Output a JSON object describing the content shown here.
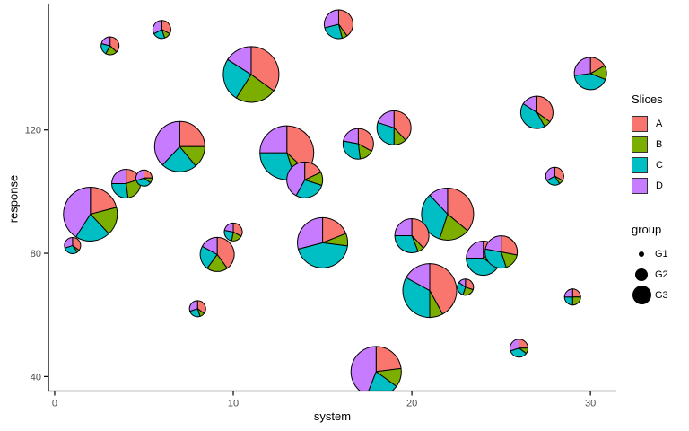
{
  "figure": {
    "background": "#FFFFFF",
    "axis_color": "#000000",
    "tick_label_color": "#4D4D4D"
  },
  "chart_data": {
    "type": "scatterpie",
    "title": "",
    "xlabel": "system",
    "ylabel": "response",
    "x_ticks": [
      0,
      10,
      20,
      30
    ],
    "y_ticks": [
      40,
      80,
      120
    ],
    "xlim": [
      -0.35,
      31.45
    ],
    "ylim": [
      35.3,
      160.7
    ],
    "grid": "off",
    "slice_legend": {
      "title": "Slices",
      "entries": [
        {
          "label": "A",
          "color": "#F8766D"
        },
        {
          "label": "B",
          "color": "#7CAE00"
        },
        {
          "label": "C",
          "color": "#00BFC4"
        },
        {
          "label": "D",
          "color": "#C77CFF"
        }
      ]
    },
    "size_legend": {
      "title": "group",
      "entries": [
        {
          "label": "G1",
          "dot_radius": 3
        },
        {
          "label": "G2",
          "dot_radius": 7
        },
        {
          "label": "G3",
          "dot_radius": 10.5
        }
      ]
    },
    "points": [
      {
        "x": 3.1,
        "y": 147.3,
        "r": 10,
        "group": "G1",
        "fractions": [
          0.37,
          0.21,
          0.21,
          0.21
        ]
      },
      {
        "x": 6.0,
        "y": 152.6,
        "r": 10,
        "group": "G1",
        "fractions": [
          0.33,
          0.12,
          0.22,
          0.33
        ]
      },
      {
        "x": 15.9,
        "y": 154.3,
        "r": 16,
        "group": "G2",
        "fractions": [
          0.4,
          0.06,
          0.25,
          0.29
        ]
      },
      {
        "x": 11.0,
        "y": 138.0,
        "r": 31,
        "group": "G3",
        "fractions": [
          0.35,
          0.24,
          0.25,
          0.16
        ]
      },
      {
        "x": 30.0,
        "y": 138.3,
        "r": 18,
        "group": "G2",
        "fractions": [
          0.17,
          0.14,
          0.42,
          0.27
        ]
      },
      {
        "x": 27.0,
        "y": 125.7,
        "r": 18,
        "group": "G2",
        "fractions": [
          0.35,
          0.07,
          0.42,
          0.16
        ]
      },
      {
        "x": 19.0,
        "y": 120.7,
        "r": 19,
        "group": "G2",
        "fractions": [
          0.38,
          0.12,
          0.3,
          0.2
        ]
      },
      {
        "x": 17.0,
        "y": 115.5,
        "r": 17,
        "group": "G2",
        "fractions": [
          0.33,
          0.15,
          0.3,
          0.22
        ]
      },
      {
        "x": 7.0,
        "y": 114.6,
        "r": 28,
        "group": "G3",
        "fractions": [
          0.25,
          0.14,
          0.23,
          0.38
        ]
      },
      {
        "x": 13.0,
        "y": 112.6,
        "r": 30,
        "group": "G3",
        "fractions": [
          0.37,
          0.08,
          0.3,
          0.25
        ]
      },
      {
        "x": 4.0,
        "y": 102.6,
        "r": 16,
        "group": "G2",
        "fractions": [
          0.2,
          0.28,
          0.27,
          0.25
        ]
      },
      {
        "x": 5.0,
        "y": 104.4,
        "r": 9,
        "group": "G1",
        "fractions": [
          0.25,
          0.1,
          0.35,
          0.3
        ]
      },
      {
        "x": 14.0,
        "y": 103.8,
        "r": 20,
        "group": "G2",
        "fractions": [
          0.18,
          0.12,
          0.28,
          0.42
        ]
      },
      {
        "x": 2.0,
        "y": 92.7,
        "r": 30,
        "group": "G3",
        "fractions": [
          0.21,
          0.17,
          0.21,
          0.41
        ]
      },
      {
        "x": 1.0,
        "y": 82.5,
        "r": 9,
        "group": "G1",
        "fractions": [
          0.35,
          0.05,
          0.3,
          0.3
        ]
      },
      {
        "x": 9.1,
        "y": 79.6,
        "r": 19,
        "group": "G2",
        "fractions": [
          0.4,
          0.2,
          0.23,
          0.17
        ]
      },
      {
        "x": 10.0,
        "y": 86.9,
        "r": 10,
        "group": "G1",
        "fractions": [
          0.33,
          0.2,
          0.25,
          0.22
        ]
      },
      {
        "x": 15.0,
        "y": 83.4,
        "r": 28,
        "group": "G3",
        "fractions": [
          0.19,
          0.08,
          0.44,
          0.29
        ]
      },
      {
        "x": 22.0,
        "y": 92.7,
        "r": 29,
        "group": "G3",
        "fractions": [
          0.36,
          0.19,
          0.33,
          0.12
        ]
      },
      {
        "x": 20.0,
        "y": 85.7,
        "r": 19,
        "group": "G2",
        "fractions": [
          0.38,
          0.06,
          0.31,
          0.25
        ]
      },
      {
        "x": 28.0,
        "y": 105.0,
        "r": 10,
        "group": "G1",
        "fractions": [
          0.33,
          0.08,
          0.26,
          0.33
        ]
      },
      {
        "x": 24.0,
        "y": 78.4,
        "r": 19,
        "group": "G2",
        "fractions": [
          0.15,
          0.2,
          0.4,
          0.25
        ]
      },
      {
        "x": 25.0,
        "y": 80.4,
        "r": 18,
        "group": "G2",
        "fractions": [
          0.28,
          0.17,
          0.33,
          0.22
        ]
      },
      {
        "x": 21.0,
        "y": 67.9,
        "r": 30,
        "group": "G3",
        "fractions": [
          0.42,
          0.08,
          0.33,
          0.17
        ]
      },
      {
        "x": 23.0,
        "y": 69.0,
        "r": 9,
        "group": "G1",
        "fractions": [
          0.3,
          0.25,
          0.3,
          0.15
        ]
      },
      {
        "x": 8.0,
        "y": 62.0,
        "r": 9,
        "group": "G1",
        "fractions": [
          0.35,
          0.1,
          0.25,
          0.3
        ]
      },
      {
        "x": 29.0,
        "y": 65.8,
        "r": 9,
        "group": "G1",
        "fractions": [
          0.25,
          0.25,
          0.25,
          0.25
        ]
      },
      {
        "x": 26.0,
        "y": 49.2,
        "r": 10,
        "group": "G1",
        "fractions": [
          0.25,
          0.1,
          0.35,
          0.3
        ]
      },
      {
        "x": 18.0,
        "y": 41.6,
        "r": 28,
        "group": "G3",
        "fractions": [
          0.23,
          0.12,
          0.21,
          0.44
        ]
      }
    ]
  }
}
